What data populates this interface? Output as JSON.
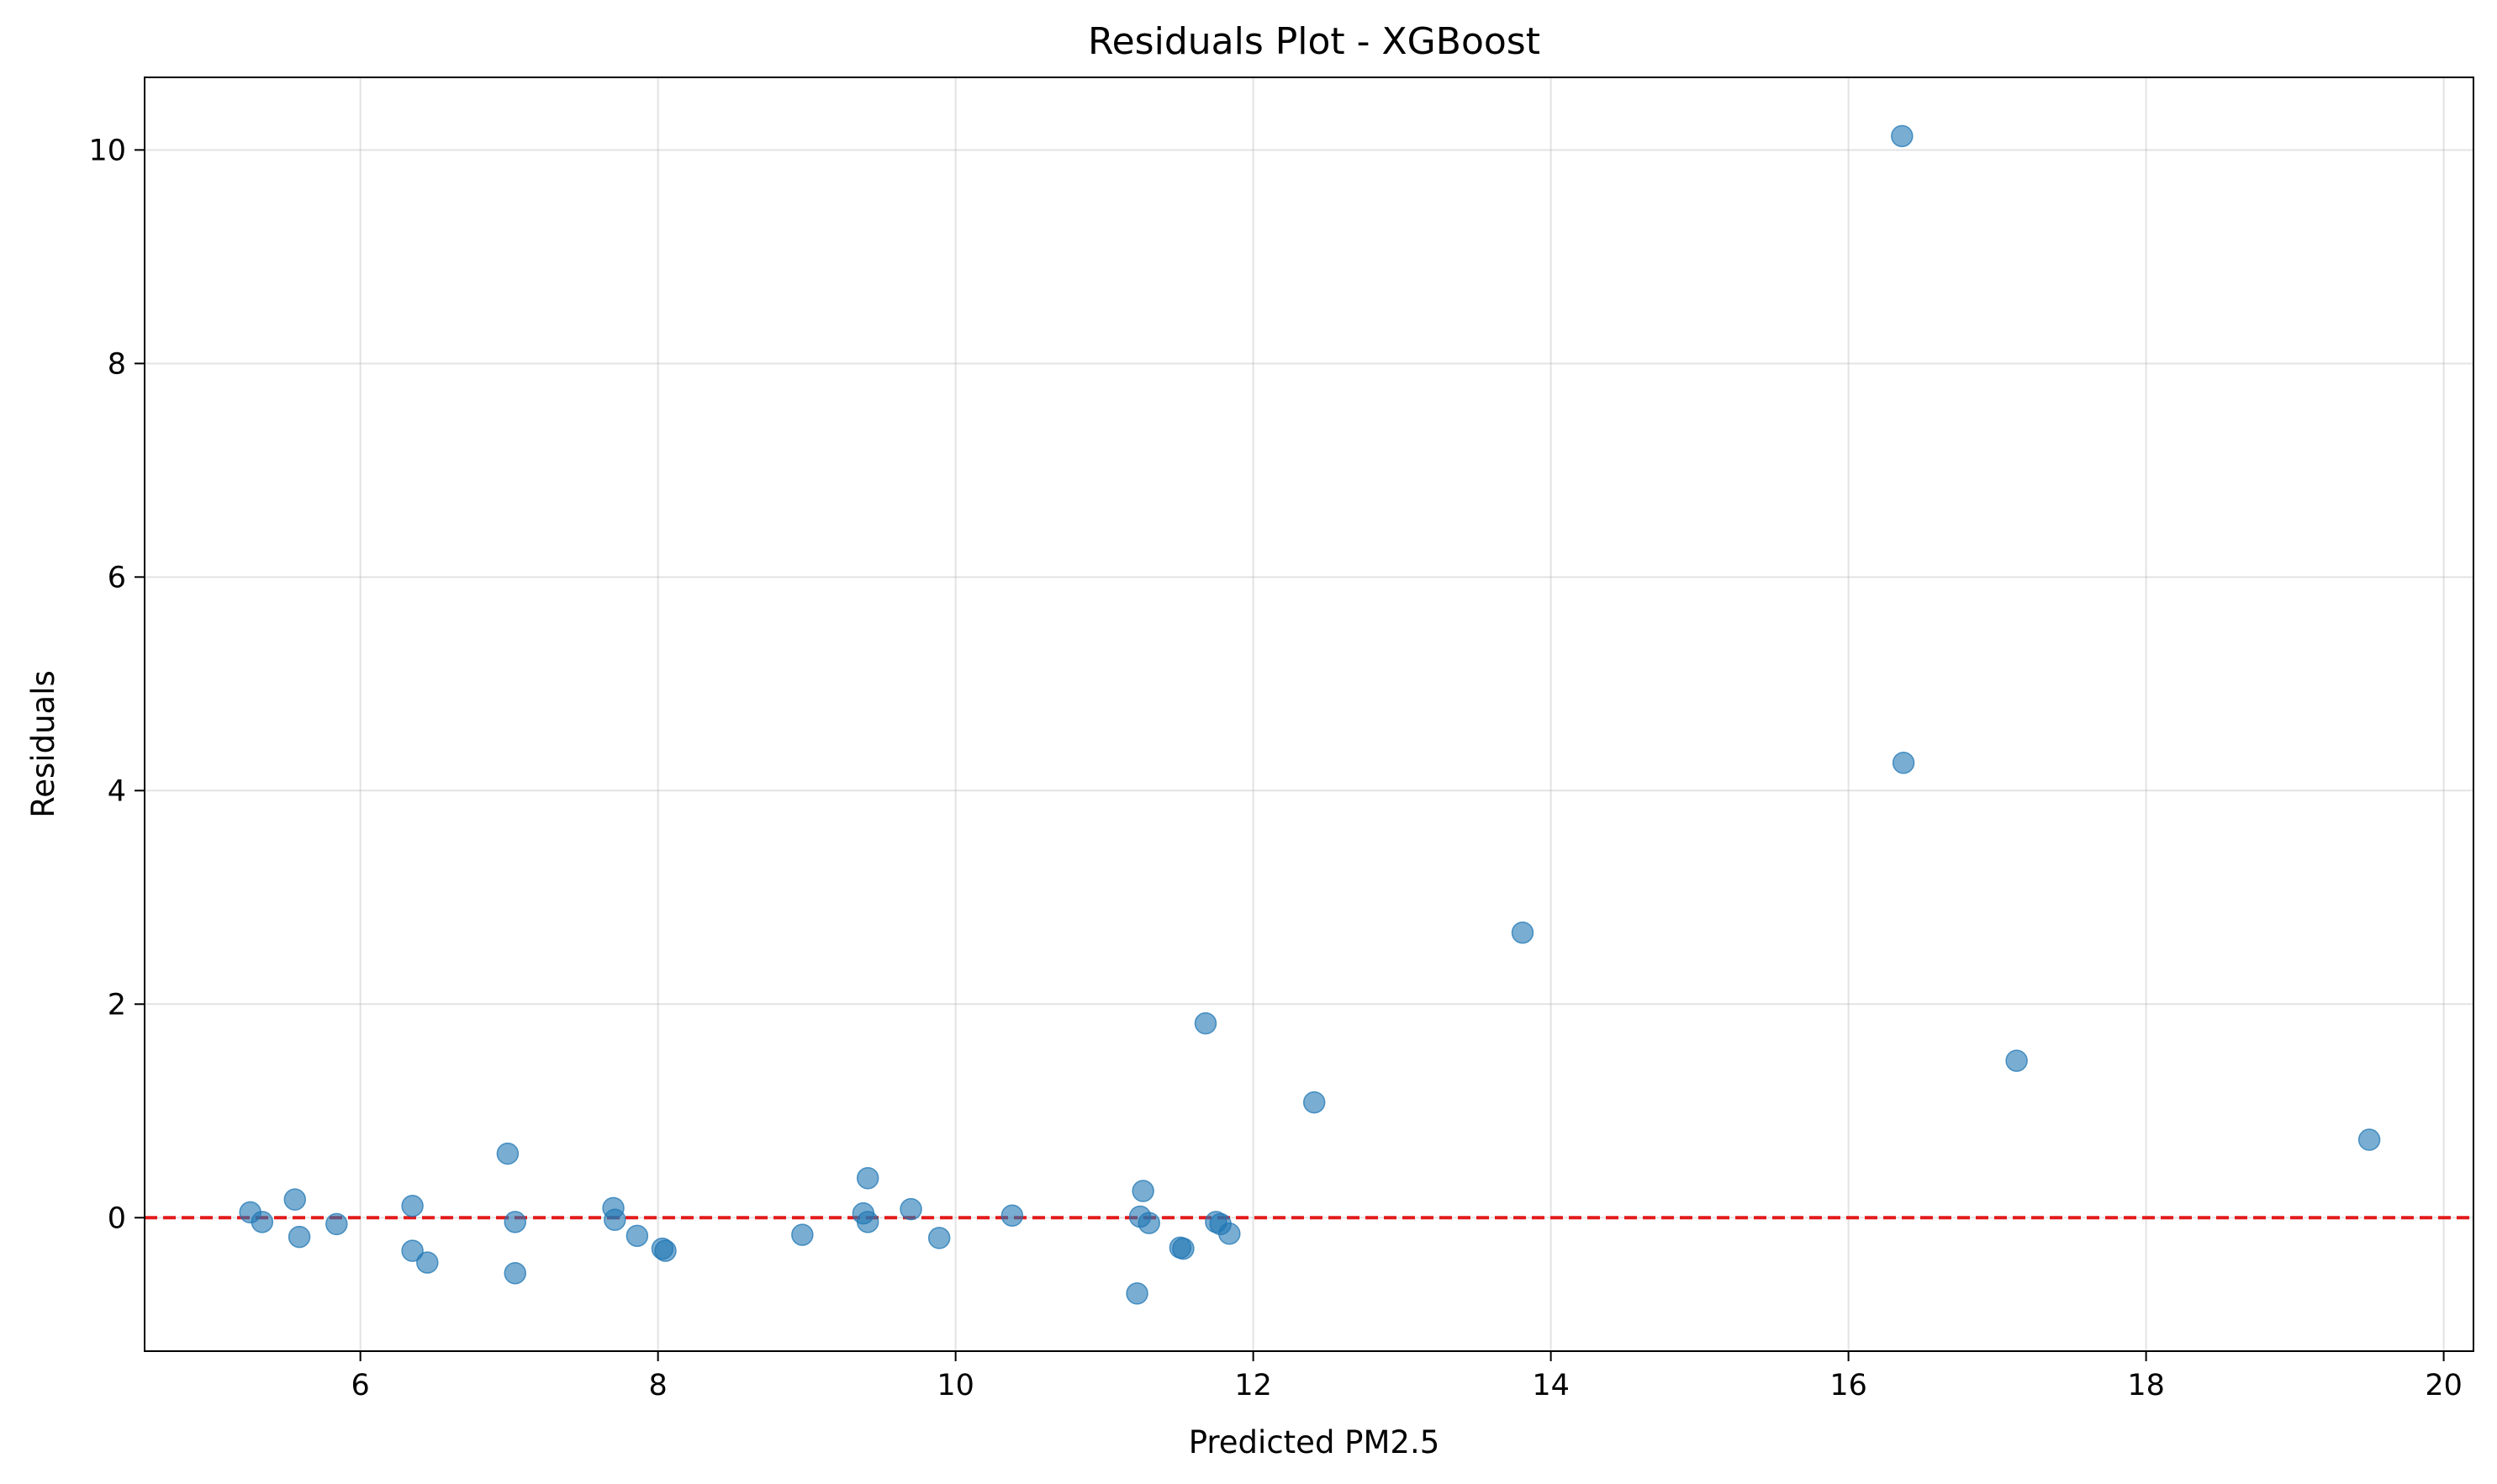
{
  "chart_data": {
    "type": "scatter",
    "title": "Residuals Plot - XGBoost",
    "xlabel": "Predicted PM2.5",
    "ylabel": "Residuals",
    "xlim": [
      4.55,
      20.2
    ],
    "ylim": [
      -1.25,
      10.68
    ],
    "xticks": [
      6,
      8,
      10,
      12,
      14,
      16,
      18,
      20
    ],
    "yticks": [
      0,
      2,
      4,
      6,
      8,
      10
    ],
    "grid": true,
    "legend": "none",
    "reference_line": {
      "y": 0,
      "color": "#e31a1c",
      "style": "dashed"
    },
    "point_color": "#1f77b4",
    "points": [
      {
        "x": 5.26,
        "y": 0.05
      },
      {
        "x": 5.34,
        "y": -0.04
      },
      {
        "x": 5.56,
        "y": 0.17
      },
      {
        "x": 5.59,
        "y": -0.18
      },
      {
        "x": 5.84,
        "y": -0.06
      },
      {
        "x": 6.35,
        "y": 0.11
      },
      {
        "x": 6.35,
        "y": -0.31
      },
      {
        "x": 6.45,
        "y": -0.42
      },
      {
        "x": 6.99,
        "y": 0.6
      },
      {
        "x": 7.04,
        "y": -0.04
      },
      {
        "x": 7.04,
        "y": -0.52
      },
      {
        "x": 7.7,
        "y": 0.09
      },
      {
        "x": 7.71,
        "y": -0.02
      },
      {
        "x": 7.86,
        "y": -0.17
      },
      {
        "x": 8.03,
        "y": -0.29
      },
      {
        "x": 8.05,
        "y": -0.31
      },
      {
        "x": 8.97,
        "y": -0.16
      },
      {
        "x": 9.38,
        "y": 0.04
      },
      {
        "x": 9.41,
        "y": 0.37
      },
      {
        "x": 9.41,
        "y": -0.04
      },
      {
        "x": 9.7,
        "y": 0.08
      },
      {
        "x": 9.89,
        "y": -0.19
      },
      {
        "x": 10.38,
        "y": 0.02
      },
      {
        "x": 11.22,
        "y": -0.71
      },
      {
        "x": 11.24,
        "y": 0.01
      },
      {
        "x": 11.26,
        "y": 0.25
      },
      {
        "x": 11.3,
        "y": -0.05
      },
      {
        "x": 11.51,
        "y": -0.28
      },
      {
        "x": 11.53,
        "y": -0.29
      },
      {
        "x": 11.68,
        "y": 1.82
      },
      {
        "x": 11.75,
        "y": -0.04
      },
      {
        "x": 11.78,
        "y": -0.06
      },
      {
        "x": 11.84,
        "y": -0.15
      },
      {
        "x": 12.41,
        "y": 1.08
      },
      {
        "x": 13.81,
        "y": 2.67
      },
      {
        "x": 16.36,
        "y": 10.13
      },
      {
        "x": 16.37,
        "y": 4.26
      },
      {
        "x": 17.13,
        "y": 1.47
      },
      {
        "x": 19.5,
        "y": 0.73
      }
    ]
  }
}
